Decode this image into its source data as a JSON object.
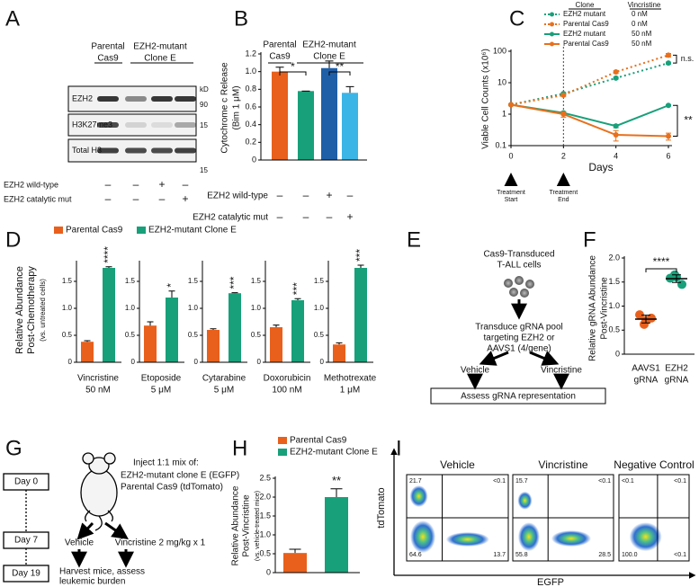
{
  "panel_labels": [
    "A",
    "B",
    "C",
    "D",
    "E",
    "F",
    "G",
    "H",
    "I"
  ],
  "blot": {
    "groups": [
      [
        "Parental",
        "Cas9"
      ],
      [
        "EZH2-mutant",
        "Clone E"
      ]
    ],
    "rows": [
      "EZH2",
      "H3K27me3",
      "Total H3"
    ],
    "kd": [
      "kD",
      "90",
      "15",
      "15"
    ],
    "conditions": [
      {
        "name": "EZH2 wild-type",
        "signs": [
          "–",
          "–",
          "+",
          "–"
        ]
      },
      {
        "name": "EZH2 catalytic mut",
        "signs": [
          "–",
          "–",
          "–",
          "+"
        ]
      }
    ]
  },
  "chart_data": [
    {
      "type": "bar",
      "ylabel": [
        "Cytochrome c Release",
        "(Bim 1 μM)"
      ],
      "groups": [
        [
          "Parental",
          "Cas9"
        ],
        [
          "EZH2-mutant",
          "Clone E"
        ]
      ],
      "values": [
        1.0,
        0.78,
        1.04,
        0.76
      ],
      "errors": [
        0.05,
        0,
        0.08,
        0.07
      ],
      "colors": [
        "#e8601c",
        "#18a07a",
        "#1f5fa8",
        "#3bb5e6"
      ],
      "ylim": [
        0,
        1.2
      ],
      "yticks": [
        0,
        0.2,
        0.4,
        0.6,
        0.8,
        {
          "value": 1,
          "label": "1.0"
        },
        1.2
      ],
      "significance": [
        "*",
        "**"
      ],
      "conditions": [
        {
          "name": "EZH2 wild-type",
          "signs": [
            "–",
            "–",
            "+",
            "–"
          ]
        },
        {
          "name": "EZH2 catalytic mut",
          "signs": [
            "–",
            "–",
            "–",
            "+"
          ]
        }
      ]
    },
    {
      "type": "line",
      "ylabel": "Viable Cell Counts (x10⁶)",
      "xlabel": "Days",
      "x": [
        0,
        2,
        4,
        6
      ],
      "xlim": [
        0,
        6
      ],
      "xticks": [
        0,
        2,
        4,
        6
      ],
      "ylim": [
        0.1,
        100
      ],
      "yticks": [
        0.1,
        1,
        10,
        100
      ],
      "log": true,
      "legend_headers": [
        "Clone",
        "Vincristine"
      ],
      "series": [
        {
          "name": "EZH2 mutant",
          "dose": "0 nM",
          "color": "#18a07a",
          "dash": true,
          "values": [
            2,
            4.5,
            14,
            42
          ],
          "errors": [
            0,
            0.3,
            1,
            3
          ]
        },
        {
          "name": "Parental Cas9",
          "dose": "0 nM",
          "color": "#e8701c",
          "dash": true,
          "values": [
            2,
            4,
            22,
            75
          ],
          "errors": [
            0,
            0.3,
            2,
            10
          ]
        },
        {
          "name": "EZH2 mutant",
          "dose": "50 nM",
          "color": "#18a07a",
          "dash": false,
          "values": [
            2,
            1.1,
            0.42,
            1.9
          ],
          "errors": [
            0,
            0.1,
            0.05,
            0.1
          ]
        },
        {
          "name": "Parental Cas9",
          "dose": "50 nM",
          "color": "#e8701c",
          "dash": false,
          "values": [
            2,
            1.0,
            0.22,
            0.2
          ],
          "errors": [
            0,
            0.2,
            0.08,
            0.05
          ]
        }
      ],
      "annotations": [
        "n.s.",
        "**"
      ],
      "markers": [
        {
          "x": 0,
          "label": [
            "Treatment",
            "Start"
          ],
          "dotted": false
        },
        {
          "x": 2,
          "label": [
            "Treatment",
            "End"
          ],
          "dotted": true
        }
      ]
    },
    {
      "type": "bar-panels",
      "legend": [
        {
          "name": "Parental Cas9",
          "color": "#e8601c"
        },
        {
          "name": "EZH2-mutant Clone E",
          "color": "#18a07a"
        }
      ],
      "ylabel": [
        "Relative Abundance",
        "Post-Chemotherapy",
        "(vs. untreated cells)"
      ],
      "panels": [
        {
          "drug": "Vincristine",
          "dose": "50 nM",
          "values": [
            0.38,
            1.75
          ],
          "errors": [
            0.02,
            0.02
          ],
          "significance": "****",
          "ylim": [
            0,
            1.85
          ],
          "yticks": [
            0,
            0.5,
            {
              "value": 1,
              "label": "1.0"
            },
            1.5
          ]
        },
        {
          "drug": "Etoposide",
          "dose": "5 μM",
          "values": [
            0.68,
            1.2
          ],
          "errors": [
            0.07,
            0.12
          ],
          "significance": "*",
          "ylim": [
            0,
            1.85
          ],
          "yticks": [
            0,
            0.5,
            {
              "value": 1,
              "label": "1.0"
            },
            1.5
          ]
        },
        {
          "drug": "Cytarabine",
          "dose": "5 μM",
          "values": [
            0.6,
            1.28
          ],
          "errors": [
            0.02,
            0.01
          ],
          "significance": "***",
          "ylim": [
            0,
            1.85
          ],
          "yticks": [
            0,
            0.5,
            {
              "value": 1,
              "label": "1.0"
            },
            1.5
          ]
        },
        {
          "drug": "Doxorubicin",
          "dose": "100 nM",
          "values": [
            0.65,
            1.15
          ],
          "errors": [
            0.04,
            0.03
          ],
          "significance": "***",
          "ylim": [
            0,
            1.85
          ],
          "yticks": [
            0,
            0.5,
            {
              "value": 1,
              "label": "1.0"
            },
            1.5
          ]
        },
        {
          "drug": "Methotrexate",
          "dose": "1 μM",
          "values": [
            0.33,
            1.75
          ],
          "errors": [
            0.03,
            0.05
          ],
          "significance": "***",
          "ylim": [
            0,
            1.85
          ],
          "yticks": [
            0,
            0.5,
            {
              "value": 1,
              "label": "1.0"
            },
            1.5
          ]
        }
      ]
    },
    {
      "type": "dot",
      "ylabel": [
        "Relative gRNA Abundance",
        "Post-Vincristine"
      ],
      "categories": [
        [
          "AAVS1",
          "gRNA"
        ],
        [
          "EZH2",
          "gRNA"
        ]
      ],
      "colors": [
        "#e8601c",
        "#18a07a"
      ],
      "values": [
        [
          0.82,
          0.7,
          0.75,
          0.62
        ],
        [
          1.58,
          1.6,
          1.45,
          1.65
        ]
      ],
      "means": [
        0.73,
        1.57
      ],
      "errors": [
        0.08,
        0.08
      ],
      "significance": "****",
      "ylim": [
        0,
        2.0
      ],
      "yticks": [
        0,
        0.5,
        {
          "value": 1,
          "label": "1.0"
        },
        1.5,
        {
          "value": 2,
          "label": "2.0"
        }
      ]
    },
    {
      "type": "bar",
      "legend": [
        {
          "name": "Parental Cas9",
          "color": "#e8601c"
        },
        {
          "name": "EZH2-mutant Clone E",
          "color": "#18a07a"
        }
      ],
      "ylabel": [
        "Relative Abundance",
        "Post-Vincristine",
        "(vs. vehicle-treated mice)"
      ],
      "values": [
        0.52,
        2.0
      ],
      "errors": [
        0.1,
        0.22
      ],
      "significance": "**",
      "ylim": [
        0,
        2.5
      ],
      "yticks": [
        0,
        0.5,
        {
          "value": 1,
          "label": "1.0"
        },
        1.5,
        {
          "value": 2,
          "label": "2.0"
        },
        2.5
      ]
    }
  ],
  "diagram_e": {
    "cells": [
      "Cas9-Transduced",
      "T-ALL cells"
    ],
    "step": [
      "Transduce gRNA pool",
      "targeting EZH2 or",
      "AAVS1 (4/gene)"
    ],
    "arms": [
      "Vehicle",
      "Vincristine"
    ],
    "result": "Assess gRNA representation"
  },
  "diagram_g": {
    "days": [
      "Day 0",
      "Day 7",
      "Day 19"
    ],
    "inject": [
      "Inject 1:1 mix of:",
      "EZH2-mutant clone E (EGFP)",
      "Parental Cas9 (tdTomato)"
    ],
    "arms": [
      "Vehicle",
      "Vincristine 2 mg/kg x 1"
    ],
    "result": [
      "Harvest mice, assess",
      "leukemic burden"
    ]
  },
  "flow": {
    "ylabel": "tdTomato",
    "xlabel": "EGFP",
    "plots": [
      {
        "title": "Vehicle",
        "quadrants": [
          "21.7",
          "<0.1",
          "64.6",
          "13.7"
        ]
      },
      {
        "title": "Vincristine",
        "quadrants": [
          "15.7",
          "<0.1",
          "55.8",
          "28.5"
        ]
      },
      {
        "title": "Negative Control",
        "quadrants": [
          "<0.1",
          "<0.1",
          "100.0",
          "<0.1"
        ]
      }
    ]
  }
}
